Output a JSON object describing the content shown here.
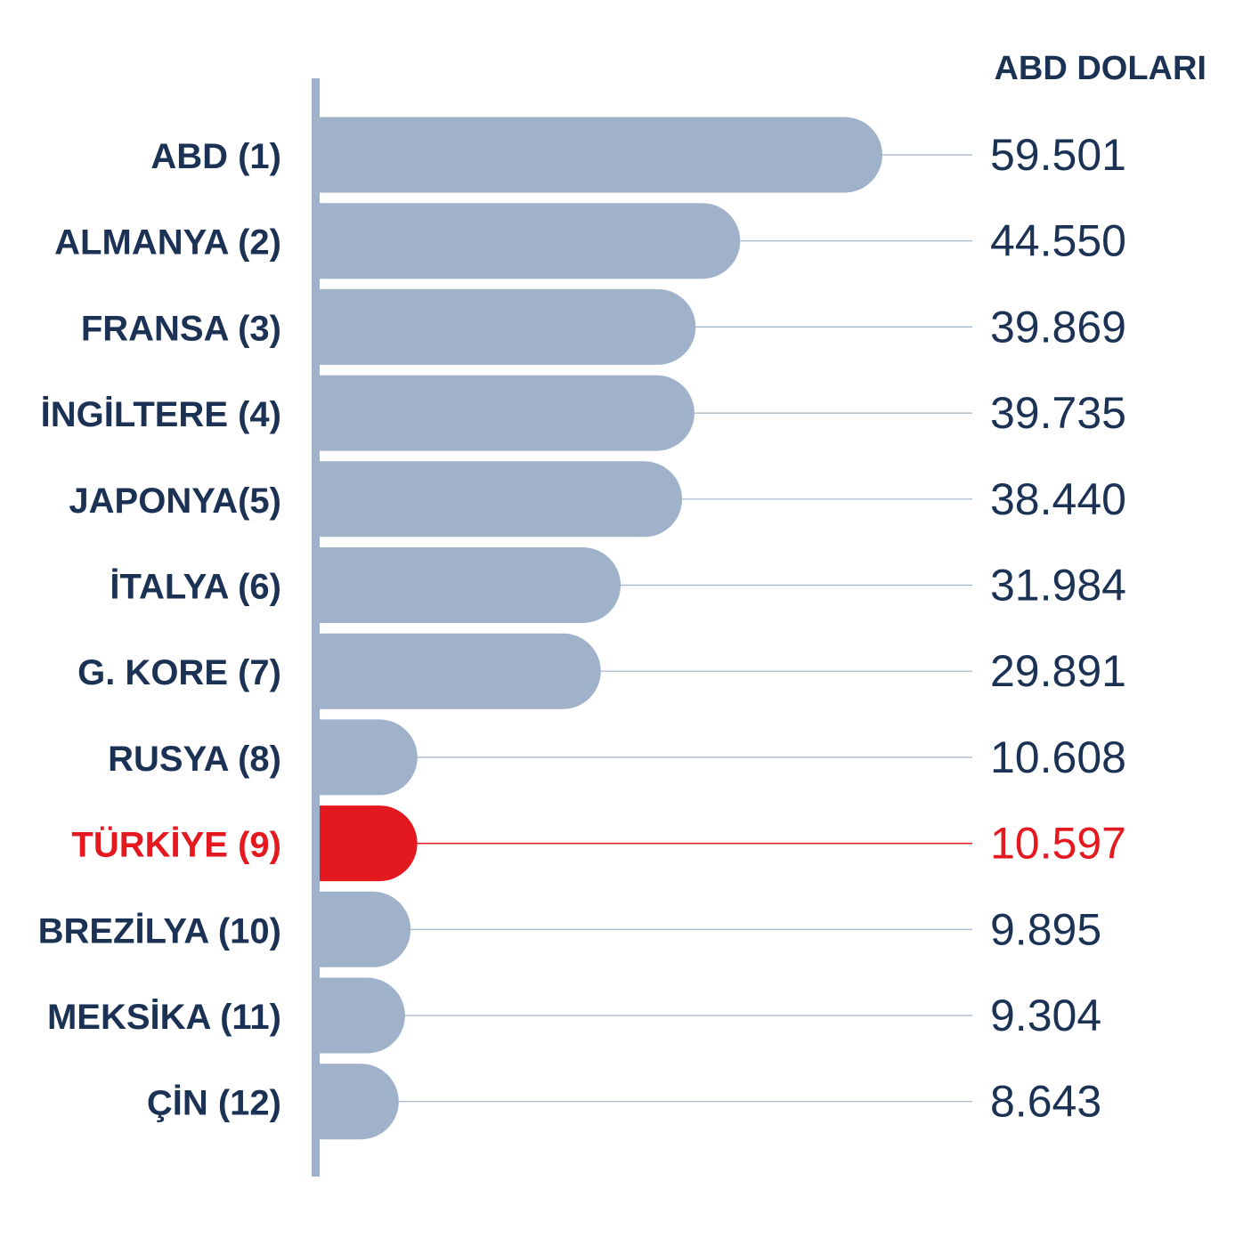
{
  "chart_data": {
    "type": "bar",
    "orientation": "horizontal",
    "unit_label": "ABD DOLARI",
    "categories": [
      "ABD  (1)",
      "ALMANYA (2)",
      "FRANSA (3)",
      "İNGİLTERE (4)",
      "JAPONYA(5)",
      "İTALYA (6)",
      "G. KORE (7)",
      "RUSYA (8)",
      "TÜRKİYE (9)",
      "BREZİLYA (10)",
      "MEKSİKA (11)",
      "ÇİN (12)"
    ],
    "values": [
      59501,
      44550,
      39869,
      39735,
      38440,
      31984,
      29891,
      10608,
      10597,
      9895,
      9304,
      8643
    ],
    "value_labels": [
      "59.501",
      "44.550",
      "39.869",
      "39.735",
      "38.440",
      "31.984",
      "29.891",
      "10.608",
      "10.597",
      "9.895",
      "9.304",
      "8.643"
    ],
    "highlight_index": 8,
    "colors": {
      "bar": "#a0b2ca",
      "highlight": "#e3191f",
      "text": "#1b3255",
      "axis": "#a0b2ca",
      "leader": "#a0b2ca"
    }
  }
}
